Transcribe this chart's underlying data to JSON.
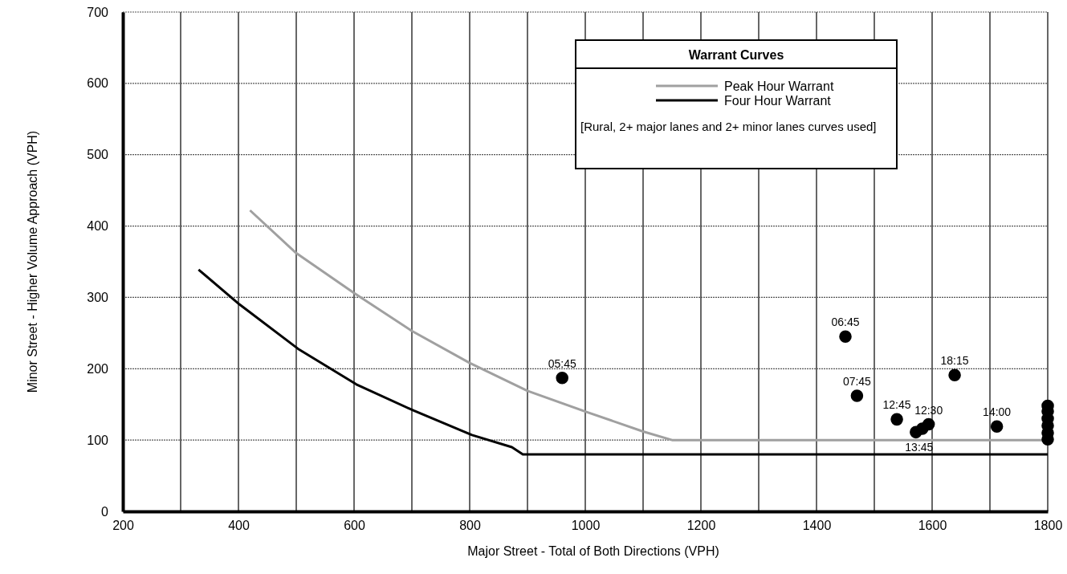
{
  "chart_data": {
    "type": "line",
    "xlabel": "Major Street - Total of Both Directions (VPH)",
    "ylabel": "Minor Street - Higher Volume Approach (VPH)",
    "xlim": [
      200,
      1800
    ],
    "ylim": [
      0,
      700
    ],
    "xticks": [
      200,
      {
        "value": 300,
        "label": null
      },
      400,
      {
        "value": 500,
        "label": null
      },
      600,
      {
        "value": 700,
        "label": null
      },
      800,
      {
        "value": 900,
        "label": null
      },
      1000,
      {
        "value": 1100,
        "label": null
      },
      1200,
      {
        "value": 1300,
        "label": null
      },
      1400,
      {
        "value": 1500,
        "label": null
      },
      1600,
      {
        "value": 1700,
        "label": null
      },
      1800
    ],
    "yticks": [
      0,
      100,
      200,
      300,
      400,
      500,
      600,
      700
    ],
    "grid": true,
    "legend": "top right",
    "legend_title": "Warrant Curves",
    "annotations": [
      "[Rural,  2+ major lanes and 2+ minor lanes curves used]",
      {
        "text": "05:45",
        "x": 960,
        "y": 187
      },
      {
        "text": "06:45",
        "x": 1450,
        "y": 245
      },
      {
        "text": "07:45",
        "x": 1470,
        "y": 162
      },
      {
        "text": "12:45",
        "x": 1539,
        "y": 129
      },
      {
        "text": "13:45",
        "x": 1572,
        "y": 111
      },
      {
        "text": "12:30",
        "x": 1594,
        "y": 122
      },
      {
        "text": "18:15",
        "x": 1639,
        "y": 191
      },
      {
        "text": "14:00",
        "x": 1712,
        "y": 119
      }
    ],
    "series": [
      {
        "name": "Peak Hour Warrant",
        "color": "#a0a0a0",
        "x": [
          420,
          500,
          600,
          700,
          800,
          900,
          1000,
          1100,
          1150,
          1800
        ],
        "values": [
          422,
          362,
          306,
          253,
          208,
          169,
          140,
          112,
          100,
          100
        ]
      },
      {
        "name": "Four Hour Warrant",
        "color": "#000000",
        "x": [
          331,
          402,
          503,
          604,
          704,
          804,
          873,
          892,
          1800
        ],
        "values": [
          339,
          290,
          228,
          178,
          141,
          107,
          90,
          80,
          80
        ]
      },
      {
        "type": "scatter",
        "color": "#000000",
        "marker": "circle",
        "x": [
          960,
          1450,
          1470,
          1539,
          1572,
          1583,
          1594,
          1639,
          1712,
          1800,
          1800,
          1800,
          1800,
          1800,
          1800
        ],
        "values": [
          187,
          245,
          162,
          129,
          111,
          116,
          122,
          191,
          119,
          101,
          110,
          120,
          130,
          140,
          148
        ]
      }
    ]
  }
}
